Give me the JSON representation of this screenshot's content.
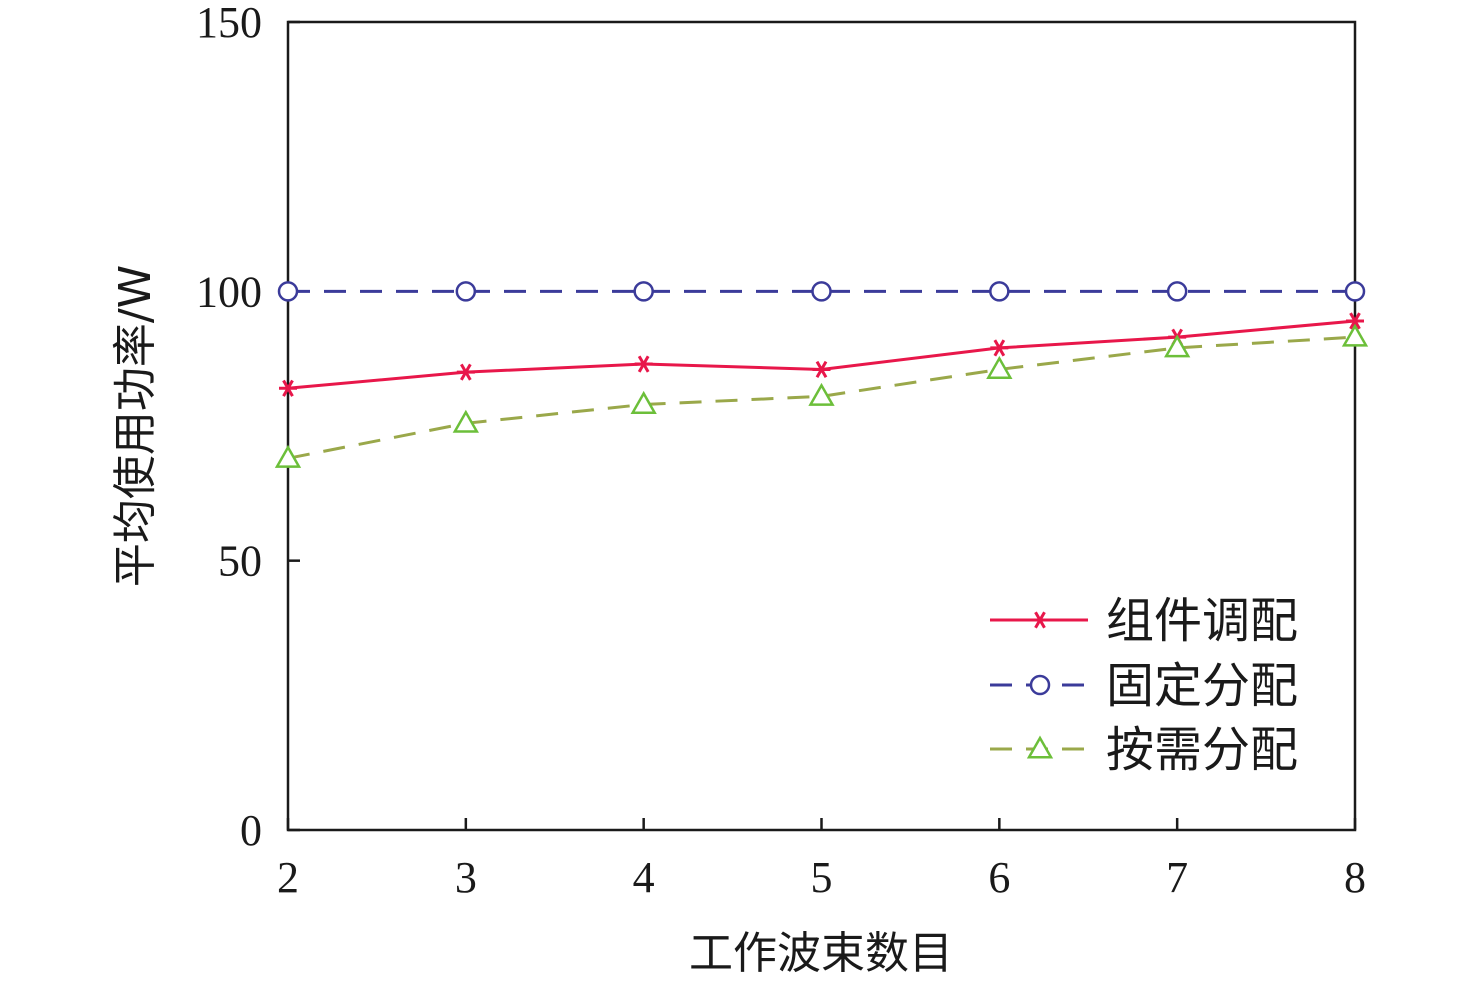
{
  "chart_data": {
    "type": "line",
    "xlabel": "工作波束数目",
    "ylabel": "平均使用功率/W",
    "x": [
      2,
      3,
      4,
      5,
      6,
      7,
      8
    ],
    "xlim": [
      2,
      8
    ],
    "ylim": [
      0,
      150
    ],
    "xticks": [
      "2",
      "3",
      "4",
      "5",
      "6",
      "7",
      "8"
    ],
    "yticks": [
      "0",
      "50",
      "100",
      "150"
    ],
    "legend_position": "bottom-right",
    "series": [
      {
        "name": "组件调配",
        "values": [
          82,
          85,
          86.5,
          85.5,
          89.5,
          91.5,
          94.5
        ],
        "color": "#e8174a",
        "dash": "solid",
        "marker": "asterisk",
        "marker_color": "#e8174a"
      },
      {
        "name": "固定分配",
        "values": [
          100,
          100,
          100,
          100,
          100,
          100,
          100
        ],
        "color": "#3b3b9a",
        "dash": "dashed",
        "marker": "circle",
        "marker_color": "#3b3b9a"
      },
      {
        "name": "按需分配",
        "values": [
          69,
          75.5,
          79,
          80.5,
          85.5,
          89.5,
          91.5
        ],
        "color": "#9aa84a",
        "dash": "dashed",
        "marker": "triangle",
        "marker_color": "#6cbf3a"
      }
    ]
  }
}
